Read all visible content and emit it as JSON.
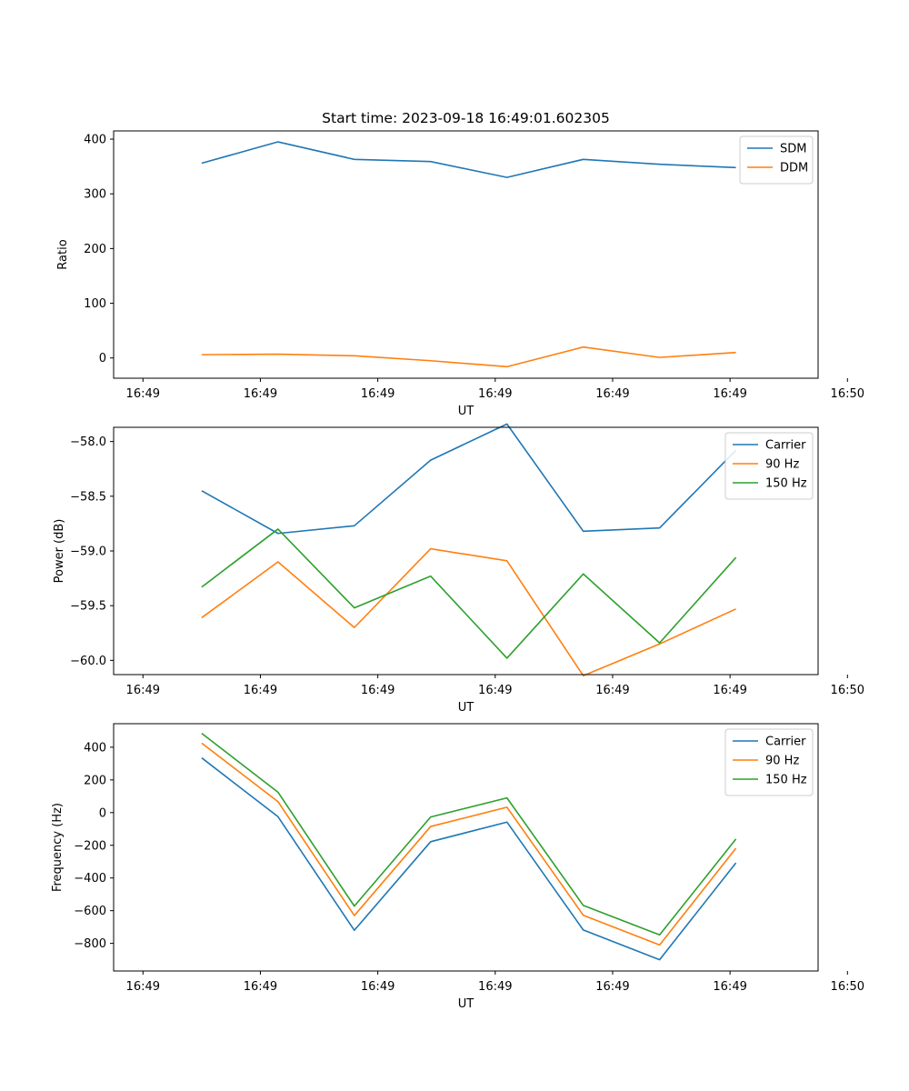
{
  "figure_title": "Start time: 2023-09-18 16:49:01.602305",
  "chart_data": [
    {
      "type": "line",
      "title": "Start time: 2023-09-18 16:49:01.602305",
      "xlabel": "UT",
      "ylabel": "Ratio",
      "xlim": [
        0,
        12
      ],
      "ylim": [
        -37,
        415
      ],
      "x_ticks": [
        0.5,
        2.5,
        4.5,
        6.5,
        8.5,
        10.5,
        12.5
      ],
      "x_tick_labels": [
        "16:49",
        "16:49",
        "16:49",
        "16:49",
        "16:49",
        "16:49",
        "16:50"
      ],
      "y_ticks": [
        0,
        100,
        200,
        300,
        400
      ],
      "y_tick_labels": [
        "0",
        "100",
        "200",
        "300",
        "400"
      ],
      "x": [
        1.5,
        2.8,
        4.1,
        5.4,
        6.7,
        8.0,
        9.3,
        10.6
      ],
      "legend_position": "top-right",
      "series": [
        {
          "name": "SDM",
          "color": "#1f77b4",
          "values": [
            356,
            395,
            363,
            359,
            330,
            363,
            354,
            348
          ]
        },
        {
          "name": "DDM",
          "color": "#ff7f0e",
          "values": [
            6,
            7,
            4,
            -5,
            -16,
            20,
            1,
            10
          ]
        }
      ]
    },
    {
      "type": "line",
      "title": "",
      "xlabel": "UT",
      "ylabel": "Power (dB)",
      "xlim": [
        0,
        12
      ],
      "ylim": [
        -60.13,
        -57.87
      ],
      "x_ticks": [
        0.5,
        2.5,
        4.5,
        6.5,
        8.5,
        10.5,
        12.5
      ],
      "x_tick_labels": [
        "16:49",
        "16:49",
        "16:49",
        "16:49",
        "16:49",
        "16:49",
        "16:50"
      ],
      "y_ticks": [
        -58.0,
        -58.5,
        -59.0,
        -59.5,
        -60.0
      ],
      "y_tick_labels": [
        "−58.0",
        "−58.5",
        "−59.0",
        "−59.5",
        "−60.0"
      ],
      "x": [
        1.5,
        2.8,
        4.1,
        5.4,
        6.7,
        8.0,
        9.3,
        10.6
      ],
      "legend_position": "top-right",
      "series": [
        {
          "name": "Carrier",
          "color": "#1f77b4",
          "values": [
            -58.45,
            -58.84,
            -58.77,
            -58.17,
            -57.84,
            -58.82,
            -58.79,
            -58.08
          ]
        },
        {
          "name": "90 Hz",
          "color": "#ff7f0e",
          "values": [
            -59.61,
            -59.1,
            -59.7,
            -58.98,
            -59.09,
            -60.14,
            -59.85,
            -59.53
          ]
        },
        {
          "name": "150 Hz",
          "color": "#2ca02c",
          "values": [
            -59.33,
            -58.8,
            -59.52,
            -59.23,
            -59.98,
            -59.21,
            -59.84,
            -59.06
          ]
        }
      ]
    },
    {
      "type": "line",
      "title": "",
      "xlabel": "UT",
      "ylabel": "Frequency (Hz)",
      "xlim": [
        0,
        12
      ],
      "ylim": [
        -969,
        544
      ],
      "x_ticks": [
        0.5,
        2.5,
        4.5,
        6.5,
        8.5,
        10.5,
        12.5
      ],
      "x_tick_labels": [
        "16:49",
        "16:49",
        "16:49",
        "16:49",
        "16:49",
        "16:49",
        "16:50"
      ],
      "y_ticks": [
        400,
        200,
        0,
        -200,
        -400,
        -600,
        -800
      ],
      "y_tick_labels": [
        "400",
        "200",
        "0",
        "−200",
        "−400",
        "−600",
        "−800"
      ],
      "x": [
        1.5,
        2.8,
        4.1,
        5.4,
        6.7,
        8.0,
        9.3,
        10.6
      ],
      "legend_position": "top-right",
      "series": [
        {
          "name": "Carrier",
          "color": "#1f77b4",
          "values": [
            335,
            -25,
            -720,
            -178,
            -58,
            -718,
            -900,
            -308
          ]
        },
        {
          "name": "90 Hz",
          "color": "#ff7f0e",
          "values": [
            425,
            67,
            -630,
            -85,
            33,
            -628,
            -810,
            -218
          ]
        },
        {
          "name": "150 Hz",
          "color": "#2ca02c",
          "values": [
            485,
            125,
            -572,
            -27,
            90,
            -568,
            -748,
            -162
          ]
        }
      ]
    }
  ]
}
